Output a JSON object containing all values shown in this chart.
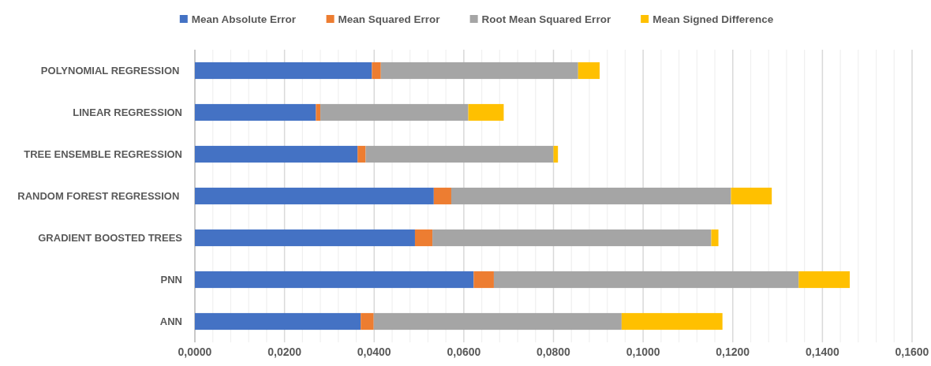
{
  "chart_data": {
    "type": "bar",
    "orientation": "horizontal",
    "stacked": true,
    "categories": [
      "POLYNOMIAL REGRESSION ",
      "LINEAR REGRESSION",
      "TREE ENSEMBLE REGRESSION",
      "RANDOM FOREST REGRESSION ",
      "GRADIENT BOOSTED TREES",
      "PNN",
      "ANN"
    ],
    "series": [
      {
        "name": "Mean Absolute Error",
        "color": "#4472c4",
        "values": [
          0.0395,
          0.027,
          0.0363,
          0.0533,
          0.0491,
          0.0622,
          0.037
        ]
      },
      {
        "name": "Mean Squared Error",
        "color": "#ed7d31",
        "values": [
          0.002,
          0.001,
          0.0018,
          0.0039,
          0.0039,
          0.0045,
          0.0029
        ]
      },
      {
        "name": "Root Mean Squared Error",
        "color": "#a5a5a5",
        "values": [
          0.044,
          0.033,
          0.0419,
          0.0624,
          0.0622,
          0.068,
          0.0553
        ]
      },
      {
        "name": "Mean Signed Difference",
        "color": "#ffc000",
        "values": [
          0.0048,
          0.0079,
          0.001,
          0.0091,
          0.0016,
          0.0114,
          0.0225
        ]
      }
    ],
    "xlim": [
      0,
      0.16
    ],
    "xticks": [
      {
        "value": 0,
        "label": "0,0000"
      },
      {
        "value": 0.004,
        "label": null
      },
      {
        "value": 0.008,
        "label": null
      },
      {
        "value": 0.012,
        "label": null
      },
      {
        "value": 0.016,
        "label": null
      },
      {
        "value": 0.02,
        "label": "0,0200"
      },
      {
        "value": 0.024,
        "label": null
      },
      {
        "value": 0.028,
        "label": null
      },
      {
        "value": 0.032,
        "label": null
      },
      {
        "value": 0.036,
        "label": null
      },
      {
        "value": 0.04,
        "label": "0,0400"
      },
      {
        "value": 0.044,
        "label": null
      },
      {
        "value": 0.048,
        "label": null
      },
      {
        "value": 0.052,
        "label": null
      },
      {
        "value": 0.056,
        "label": null
      },
      {
        "value": 0.06,
        "label": "0,0600"
      },
      {
        "value": 0.064,
        "label": null
      },
      {
        "value": 0.068,
        "label": null
      },
      {
        "value": 0.072,
        "label": null
      },
      {
        "value": 0.076,
        "label": null
      },
      {
        "value": 0.08,
        "label": "0,0800"
      },
      {
        "value": 0.084,
        "label": null
      },
      {
        "value": 0.088,
        "label": null
      },
      {
        "value": 0.092,
        "label": null
      },
      {
        "value": 0.096,
        "label": null
      },
      {
        "value": 0.1,
        "label": "0,1000"
      },
      {
        "value": 0.104,
        "label": null
      },
      {
        "value": 0.108,
        "label": null
      },
      {
        "value": 0.112,
        "label": null
      },
      {
        "value": 0.116,
        "label": null
      },
      {
        "value": 0.12,
        "label": "0,1200"
      },
      {
        "value": 0.124,
        "label": null
      },
      {
        "value": 0.128,
        "label": null
      },
      {
        "value": 0.132,
        "label": null
      },
      {
        "value": 0.136,
        "label": null
      },
      {
        "value": 0.14,
        "label": "0,1400"
      },
      {
        "value": 0.144,
        "label": null
      },
      {
        "value": 0.148,
        "label": null
      },
      {
        "value": 0.152,
        "label": null
      },
      {
        "value": 0.156,
        "label": null
      },
      {
        "value": 0.16,
        "label": "0,1600"
      }
    ],
    "grid": "x",
    "legend": "top"
  }
}
